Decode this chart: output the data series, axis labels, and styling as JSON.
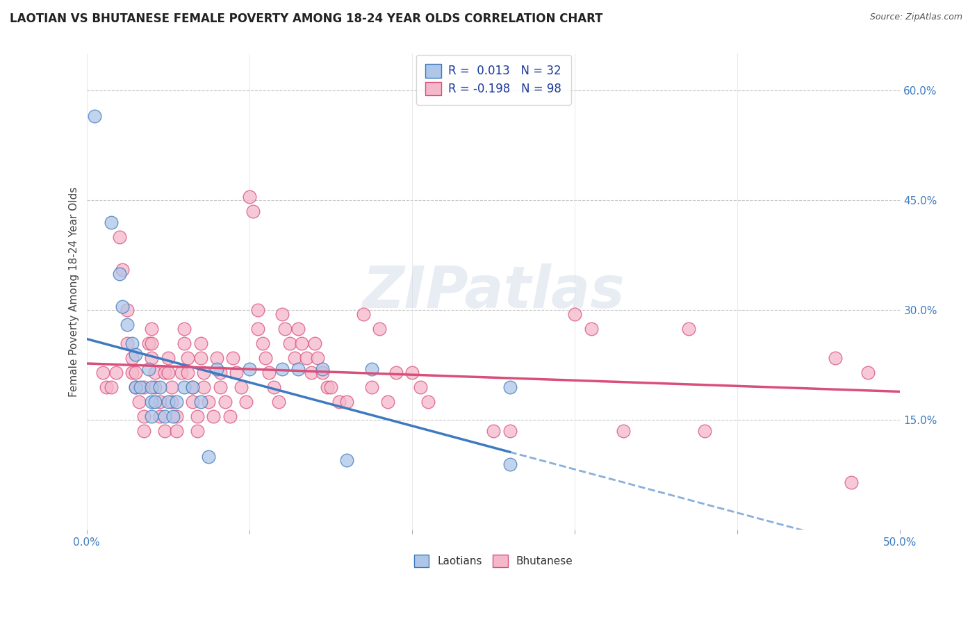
{
  "title": "LAOTIAN VS BHUTANESE FEMALE POVERTY AMONG 18-24 YEAR OLDS CORRELATION CHART",
  "source": "Source: ZipAtlas.com",
  "ylabel": "Female Poverty Among 18-24 Year Olds",
  "xlabel": "",
  "xlim": [
    0.0,
    0.5
  ],
  "ylim": [
    0.0,
    0.65
  ],
  "xticks": [
    0.0,
    0.1,
    0.2,
    0.3,
    0.4,
    0.5
  ],
  "xticklabels": [
    "0.0%",
    "",
    "",
    "",
    "",
    "50.0%"
  ],
  "ytick_positions": [
    0.15,
    0.3,
    0.45,
    0.6
  ],
  "ytick_labels": [
    "15.0%",
    "30.0%",
    "45.0%",
    "60.0%"
  ],
  "laotian_R": 0.013,
  "laotian_N": 32,
  "bhutanese_R": -0.198,
  "bhutanese_N": 98,
  "laotian_color": "#aec6e8",
  "bhutanese_color": "#f5b8cb",
  "laotian_line_color": "#3d7abf",
  "bhutanese_line_color": "#d94f7a",
  "watermark_text": "ZIPatlas",
  "background_color": "#ffffff",
  "grid_color": "#c8c8c8",
  "laotian_points": [
    [
      0.005,
      0.565
    ],
    [
      0.015,
      0.42
    ],
    [
      0.02,
      0.35
    ],
    [
      0.022,
      0.305
    ],
    [
      0.025,
      0.28
    ],
    [
      0.028,
      0.255
    ],
    [
      0.03,
      0.24
    ],
    [
      0.03,
      0.195
    ],
    [
      0.033,
      0.195
    ],
    [
      0.038,
      0.22
    ],
    [
      0.04,
      0.195
    ],
    [
      0.04,
      0.175
    ],
    [
      0.04,
      0.155
    ],
    [
      0.042,
      0.175
    ],
    [
      0.045,
      0.195
    ],
    [
      0.048,
      0.155
    ],
    [
      0.05,
      0.175
    ],
    [
      0.053,
      0.155
    ],
    [
      0.055,
      0.175
    ],
    [
      0.06,
      0.195
    ],
    [
      0.065,
      0.195
    ],
    [
      0.07,
      0.175
    ],
    [
      0.075,
      0.1
    ],
    [
      0.08,
      0.22
    ],
    [
      0.1,
      0.22
    ],
    [
      0.12,
      0.22
    ],
    [
      0.13,
      0.22
    ],
    [
      0.145,
      0.22
    ],
    [
      0.16,
      0.095
    ],
    [
      0.175,
      0.22
    ],
    [
      0.26,
      0.195
    ],
    [
      0.26,
      0.09
    ]
  ],
  "bhutanese_points": [
    [
      0.01,
      0.215
    ],
    [
      0.012,
      0.195
    ],
    [
      0.015,
      0.195
    ],
    [
      0.018,
      0.215
    ],
    [
      0.02,
      0.4
    ],
    [
      0.022,
      0.355
    ],
    [
      0.025,
      0.3
    ],
    [
      0.025,
      0.255
    ],
    [
      0.028,
      0.235
    ],
    [
      0.028,
      0.215
    ],
    [
      0.03,
      0.215
    ],
    [
      0.03,
      0.195
    ],
    [
      0.032,
      0.175
    ],
    [
      0.035,
      0.155
    ],
    [
      0.035,
      0.135
    ],
    [
      0.035,
      0.195
    ],
    [
      0.038,
      0.255
    ],
    [
      0.04,
      0.275
    ],
    [
      0.04,
      0.255
    ],
    [
      0.04,
      0.235
    ],
    [
      0.042,
      0.215
    ],
    [
      0.042,
      0.195
    ],
    [
      0.045,
      0.175
    ],
    [
      0.045,
      0.155
    ],
    [
      0.048,
      0.135
    ],
    [
      0.048,
      0.215
    ],
    [
      0.05,
      0.235
    ],
    [
      0.05,
      0.215
    ],
    [
      0.052,
      0.195
    ],
    [
      0.052,
      0.175
    ],
    [
      0.055,
      0.155
    ],
    [
      0.055,
      0.135
    ],
    [
      0.058,
      0.215
    ],
    [
      0.06,
      0.275
    ],
    [
      0.06,
      0.255
    ],
    [
      0.062,
      0.235
    ],
    [
      0.062,
      0.215
    ],
    [
      0.065,
      0.195
    ],
    [
      0.065,
      0.175
    ],
    [
      0.068,
      0.155
    ],
    [
      0.068,
      0.135
    ],
    [
      0.07,
      0.255
    ],
    [
      0.07,
      0.235
    ],
    [
      0.072,
      0.215
    ],
    [
      0.072,
      0.195
    ],
    [
      0.075,
      0.175
    ],
    [
      0.078,
      0.155
    ],
    [
      0.08,
      0.235
    ],
    [
      0.082,
      0.215
    ],
    [
      0.082,
      0.195
    ],
    [
      0.085,
      0.175
    ],
    [
      0.088,
      0.155
    ],
    [
      0.09,
      0.235
    ],
    [
      0.092,
      0.215
    ],
    [
      0.095,
      0.195
    ],
    [
      0.098,
      0.175
    ],
    [
      0.1,
      0.455
    ],
    [
      0.102,
      0.435
    ],
    [
      0.105,
      0.3
    ],
    [
      0.105,
      0.275
    ],
    [
      0.108,
      0.255
    ],
    [
      0.11,
      0.235
    ],
    [
      0.112,
      0.215
    ],
    [
      0.115,
      0.195
    ],
    [
      0.118,
      0.175
    ],
    [
      0.12,
      0.295
    ],
    [
      0.122,
      0.275
    ],
    [
      0.125,
      0.255
    ],
    [
      0.128,
      0.235
    ],
    [
      0.13,
      0.275
    ],
    [
      0.132,
      0.255
    ],
    [
      0.135,
      0.235
    ],
    [
      0.138,
      0.215
    ],
    [
      0.14,
      0.255
    ],
    [
      0.142,
      0.235
    ],
    [
      0.145,
      0.215
    ],
    [
      0.148,
      0.195
    ],
    [
      0.15,
      0.195
    ],
    [
      0.155,
      0.175
    ],
    [
      0.16,
      0.175
    ],
    [
      0.17,
      0.295
    ],
    [
      0.175,
      0.195
    ],
    [
      0.18,
      0.275
    ],
    [
      0.185,
      0.175
    ],
    [
      0.19,
      0.215
    ],
    [
      0.2,
      0.215
    ],
    [
      0.205,
      0.195
    ],
    [
      0.21,
      0.175
    ],
    [
      0.25,
      0.135
    ],
    [
      0.26,
      0.135
    ],
    [
      0.3,
      0.295
    ],
    [
      0.31,
      0.275
    ],
    [
      0.33,
      0.135
    ],
    [
      0.37,
      0.275
    ],
    [
      0.38,
      0.135
    ],
    [
      0.46,
      0.235
    ],
    [
      0.47,
      0.065
    ],
    [
      0.48,
      0.215
    ]
  ]
}
